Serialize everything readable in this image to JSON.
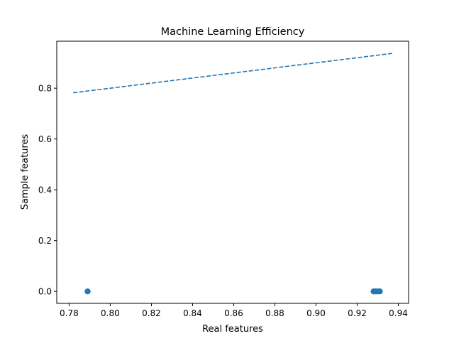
{
  "chart_data": {
    "type": "scatter",
    "title": "Machine Learning Efficiency",
    "xlabel": "Real features",
    "ylabel": "Sample features",
    "xlim": [
      0.774,
      0.945
    ],
    "ylim": [
      -0.047,
      0.985
    ],
    "x_ticks": [
      0.78,
      0.8,
      0.82,
      0.84,
      0.86,
      0.88,
      0.9,
      0.92,
      0.94
    ],
    "x_tick_labels": [
      "0.78",
      "0.80",
      "0.82",
      "0.84",
      "0.86",
      "0.88",
      "0.90",
      "0.92",
      "0.94"
    ],
    "y_ticks": [
      0.0,
      0.2,
      0.4,
      0.6,
      0.8
    ],
    "y_tick_labels": [
      "0.0",
      "0.2",
      "0.4",
      "0.6",
      "0.8"
    ],
    "grid": false,
    "legend": "none",
    "series": [
      {
        "kind": "scatter",
        "color": "#1f77b4",
        "points": [
          {
            "x": 0.789,
            "y": 0.0
          },
          {
            "x": 0.928,
            "y": 0.0
          },
          {
            "x": 0.929,
            "y": 0.0
          },
          {
            "x": 0.93,
            "y": 0.0
          },
          {
            "x": 0.931,
            "y": 0.0
          }
        ]
      },
      {
        "kind": "line",
        "style": "dashed",
        "color": "#1f77b4",
        "points": [
          {
            "x": 0.782,
            "y": 0.782
          },
          {
            "x": 0.937,
            "y": 0.937
          }
        ]
      }
    ]
  }
}
